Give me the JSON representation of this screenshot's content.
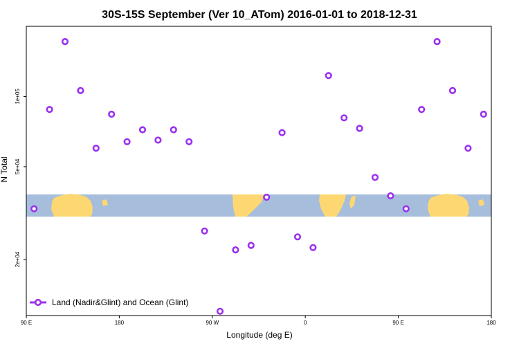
{
  "chart_data": {
    "type": "scatter",
    "title": "30S-15S September (Ver 10_ATom)   2016-01-01 to 2018-12-31",
    "xlabel": "Longitude (deg E)",
    "ylabel": "N Total",
    "x_tick_labels": [
      "90 E",
      "180",
      "90 W",
      "0",
      "90 E",
      "180"
    ],
    "x_ticks": [
      90,
      180,
      270,
      360,
      450,
      540
    ],
    "xlim": [
      90,
      540
    ],
    "y_scale": "log",
    "y_tick_labels": [
      "2e+04",
      "5e+04",
      "1e+05"
    ],
    "y_ticks": [
      20000,
      50000,
      100000
    ],
    "ylim": [
      11500,
      200000
    ],
    "grid": false,
    "legend_position": "bottom-left",
    "colors": {
      "series": "#9b30f0",
      "ocean": "#a6bddb",
      "land": "#fdd872"
    },
    "background_map": "world map strip 30S-15S (land and ocean)",
    "series": [
      {
        "name": "Land (Nadir&Glint) and Ocean (Glint)",
        "x": [
          97.5,
          112.5,
          127.5,
          142.5,
          157.5,
          172.5,
          187.5,
          202.5,
          217.5,
          232.5,
          247.5,
          262.5,
          277.5,
          292.5,
          307.5,
          322.5,
          337.5,
          352.5,
          367.5,
          382.5,
          397.5,
          412.5,
          427.5,
          442.5,
          457.5,
          472.5,
          487.5,
          502.5,
          517.5,
          532.5
        ],
        "y": [
          33000,
          88000,
          172000,
          106000,
          60000,
          84000,
          64000,
          72000,
          65000,
          72000,
          64000,
          26500,
          12000,
          22000,
          23000,
          37000,
          70000,
          25000,
          22500,
          123000,
          81000,
          73000,
          45000,
          37500,
          33000,
          88000,
          172000,
          106000,
          60000,
          84000
        ]
      }
    ]
  }
}
